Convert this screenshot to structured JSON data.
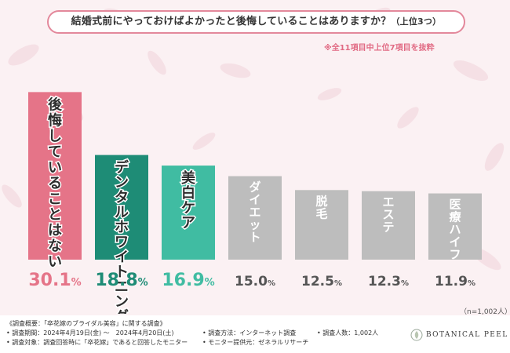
{
  "title": {
    "main": "結婚式前にやっておけばよかったと後悔していることはありますか？",
    "sub": "（上位3つ）"
  },
  "subnote": "※全11項目中上位7項目を抜粋",
  "chart_data": {
    "type": "bar",
    "categories": [
      "後悔していることはない",
      "デンタルホワイトニング",
      "美白ケア",
      "ダイエット",
      "脱毛",
      "エステ",
      "医療ハイフ"
    ],
    "values": [
      30.1,
      18.8,
      16.9,
      15.0,
      12.5,
      12.3,
      11.9
    ],
    "value_labels": [
      "30.1",
      "18.8",
      "16.9",
      "15.0",
      "12.5",
      "12.3",
      "11.9"
    ],
    "unit": "%",
    "ylim": [
      0,
      31
    ],
    "colors": [
      "#e57488",
      "#1e8c76",
      "#40bca2",
      "#bdbdbd",
      "#bdbdbd",
      "#bdbdbd",
      "#bdbdbd"
    ],
    "label_colors": [
      "#e57488",
      "#1e8c76",
      "#40bca2",
      "#555555",
      "#555555",
      "#555555",
      "#555555"
    ],
    "text_color": "#ffffff",
    "top3_text_color": "#2d2d2d",
    "xlabel": "",
    "ylabel": "",
    "title": ""
  },
  "sample_note": "（n=1,002人）",
  "footer": {
    "overview": "《調査概要：「卒花嫁のブライダル美容」に関する調査》",
    "period": "• 調査期間：2024年4月19日(金) ～　2024年4月20日(土)",
    "target": "• 調査対象：調査回答時に「卒花嫁」であると回答したモニター",
    "method": "• 調査方法：インターネット調査",
    "provider": "• モニター提供元：ゼネラルリサーチ",
    "count": "• 調査人数：1,002人",
    "brand": "BOTANICAL PEEL"
  },
  "colors": {
    "accent": "#e3889b",
    "background": "#fbf1f3"
  }
}
